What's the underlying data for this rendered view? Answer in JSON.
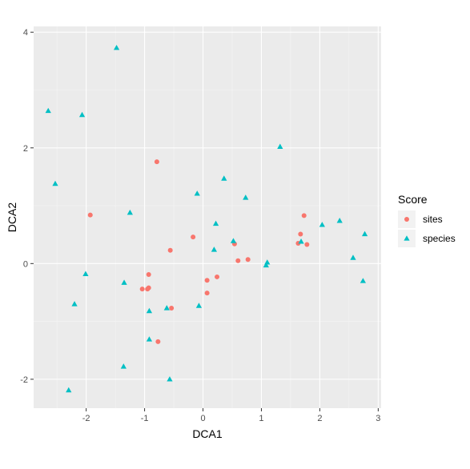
{
  "chart_data": {
    "type": "scatter",
    "xlabel": "DCA1",
    "ylabel": "DCA2",
    "xlim": [
      -2.9,
      3.05
    ],
    "ylim": [
      -2.5,
      4.1
    ],
    "x_ticks": [
      "-2",
      "-1",
      "0",
      "1",
      "2",
      "3"
    ],
    "y_ticks": [
      "-2",
      "0",
      "2",
      "4"
    ],
    "grid": true,
    "legend_position": "right",
    "legend_title": "Score",
    "series": [
      {
        "name": "sites",
        "marker": "circle",
        "color": "#F8766D",
        "points": [
          {
            "x": -1.93,
            "y": 0.84
          },
          {
            "x": -0.79,
            "y": 1.76
          },
          {
            "x": -0.17,
            "y": 0.46
          },
          {
            "x": -0.56,
            "y": 0.23
          },
          {
            "x": -0.93,
            "y": -0.19
          },
          {
            "x": -1.04,
            "y": -0.44
          },
          {
            "x": -0.95,
            "y": -0.44
          },
          {
            "x": -0.93,
            "y": -0.42
          },
          {
            "x": 0.07,
            "y": -0.29
          },
          {
            "x": 0.24,
            "y": -0.23
          },
          {
            "x": 0.07,
            "y": -0.51
          },
          {
            "x": -0.54,
            "y": -0.77
          },
          {
            "x": -0.77,
            "y": -1.35
          },
          {
            "x": 0.54,
            "y": 0.34
          },
          {
            "x": 0.6,
            "y": 0.05
          },
          {
            "x": 0.77,
            "y": 0.07
          },
          {
            "x": 1.63,
            "y": 0.35
          },
          {
            "x": 1.67,
            "y": 0.51
          },
          {
            "x": 1.73,
            "y": 0.83
          },
          {
            "x": 1.78,
            "y": 0.33
          }
        ]
      },
      {
        "name": "species",
        "marker": "triangle",
        "color": "#00BFC4",
        "points": [
          {
            "x": -1.48,
            "y": 3.73
          },
          {
            "x": -2.65,
            "y": 2.64
          },
          {
            "x": -2.07,
            "y": 2.57
          },
          {
            "x": -2.53,
            "y": 1.38
          },
          {
            "x": -1.25,
            "y": 0.88
          },
          {
            "x": -0.1,
            "y": 1.21
          },
          {
            "x": 0.36,
            "y": 1.47
          },
          {
            "x": 0.73,
            "y": 1.14
          },
          {
            "x": 1.32,
            "y": 2.02
          },
          {
            "x": 0.22,
            "y": 0.69
          },
          {
            "x": 0.19,
            "y": 0.24
          },
          {
            "x": 0.52,
            "y": 0.39
          },
          {
            "x": 1.08,
            "y": -0.03
          },
          {
            "x": 1.1,
            "y": 0.02
          },
          {
            "x": 1.68,
            "y": 0.38
          },
          {
            "x": 2.04,
            "y": 0.67
          },
          {
            "x": 2.34,
            "y": 0.74
          },
          {
            "x": 2.57,
            "y": 0.1
          },
          {
            "x": 2.77,
            "y": 0.51
          },
          {
            "x": 2.74,
            "y": -0.3
          },
          {
            "x": -2.01,
            "y": -0.18
          },
          {
            "x": -1.35,
            "y": -0.33
          },
          {
            "x": -2.2,
            "y": -0.7
          },
          {
            "x": -0.92,
            "y": -0.82
          },
          {
            "x": -0.62,
            "y": -0.77
          },
          {
            "x": -0.07,
            "y": -0.73
          },
          {
            "x": -0.92,
            "y": -1.31
          },
          {
            "x": -1.36,
            "y": -1.78
          },
          {
            "x": -0.57,
            "y": -2.0
          },
          {
            "x": -2.3,
            "y": -2.19
          }
        ]
      }
    ]
  }
}
